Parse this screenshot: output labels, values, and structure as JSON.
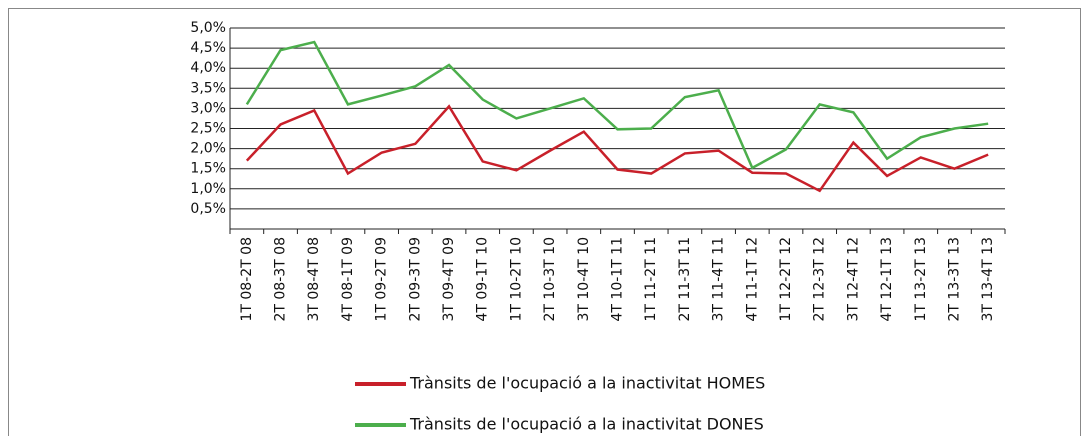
{
  "chart_data": {
    "type": "line",
    "categories": [
      "1T 08-2T 08",
      "2T 08-3T 08",
      "3T 08-4T 08",
      "4T 08-1T 09",
      "1T 09-2T 09",
      "2T 09-3T 09",
      "3T 09-4T 09",
      "4T 09-1T 10",
      "1T 10-2T 10",
      "2T 10-3T 10",
      "3T 10-4T 10",
      "4T 10-1T 11",
      "1T 11-2T 11",
      "2T 11-3T 11",
      "3T 11-4T 11",
      "4T 11-1T 12",
      "1T 12-2T 12",
      "2T 12-3T 12",
      "3T 12-4T 12",
      "4T 12-1T 13",
      "1T 13-2T 13",
      "2T 13-3T 13",
      "3T 13-4T 13"
    ],
    "series": [
      {
        "name": "Trànsits de l'ocupació a la inactivitat HOMES",
        "color": "#c8202a",
        "values": [
          1.7,
          2.6,
          2.95,
          1.38,
          1.9,
          2.12,
          3.05,
          1.68,
          1.46,
          1.95,
          2.42,
          1.48,
          1.38,
          1.88,
          1.95,
          1.4,
          1.38,
          0.95,
          2.15,
          1.32,
          1.78,
          1.5,
          1.85
        ]
      },
      {
        "name": "Trànsits de l'ocupació a la inactivitat DONES",
        "color": "#4cae4c",
        "values": [
          3.1,
          4.45,
          4.65,
          3.1,
          3.32,
          3.55,
          4.08,
          3.22,
          2.75,
          3.0,
          3.25,
          2.48,
          2.5,
          3.28,
          3.45,
          1.52,
          1.98,
          3.1,
          2.9,
          1.75,
          2.28,
          2.5,
          2.62
        ]
      }
    ],
    "ylim": [
      0,
      5
    ],
    "yticks": [
      {
        "value": 0.5,
        "label": "0,5%"
      },
      {
        "value": 1,
        "label": "1,0%"
      },
      {
        "value": 1.5,
        "label": "1,5%"
      },
      {
        "value": 2,
        "label": "2,0%"
      },
      {
        "value": 2.5,
        "label": "2,5%"
      },
      {
        "value": 3,
        "label": "3,0%"
      },
      {
        "value": 3.5,
        "label": "3,5%"
      },
      {
        "value": 4,
        "label": "4,0%"
      },
      {
        "value": 4.5,
        "label": "4,5%"
      },
      {
        "value": 5,
        "label": "5,0%"
      }
    ],
    "grid": true
  }
}
